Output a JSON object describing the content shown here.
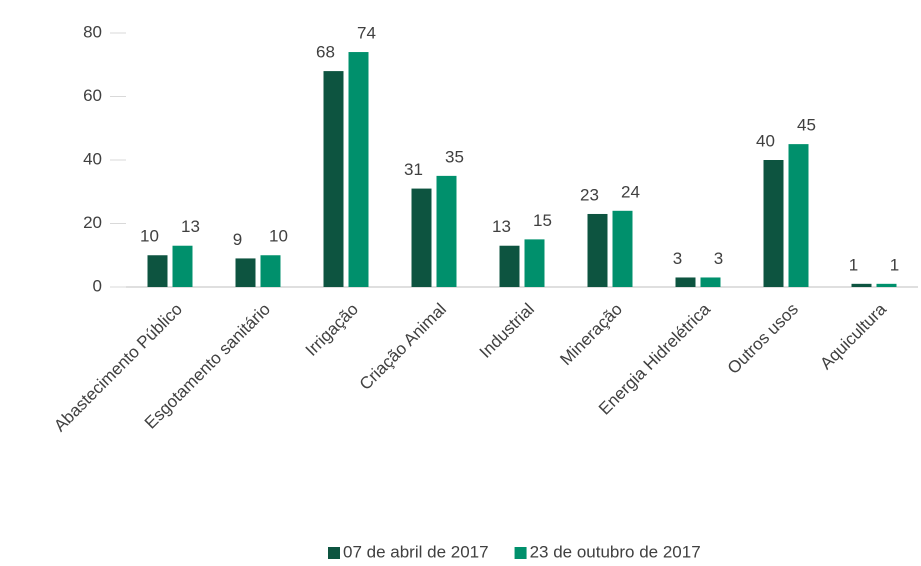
{
  "chart_data": {
    "type": "bar",
    "categories": [
      "Abastecimento Público",
      "Esgotamento sanitário",
      "Irrigação",
      "Criação Animal",
      "Industrial",
      "Mineração",
      "Energia Hidrelétrica",
      "Outros usos",
      "Aquicultura"
    ],
    "series": [
      {
        "name": "07 de abril de 2017",
        "color": "#0d5440",
        "values": [
          10,
          9,
          68,
          31,
          13,
          23,
          3,
          40,
          1
        ]
      },
      {
        "name": "23 de outubro de 2017",
        "color": "#00906c",
        "values": [
          13,
          10,
          74,
          35,
          15,
          24,
          3,
          45,
          1
        ]
      }
    ],
    "ylim": [
      0,
      80
    ],
    "yticks": [
      0,
      20,
      40,
      60,
      80
    ],
    "grid": false,
    "legend": "bottom"
  }
}
